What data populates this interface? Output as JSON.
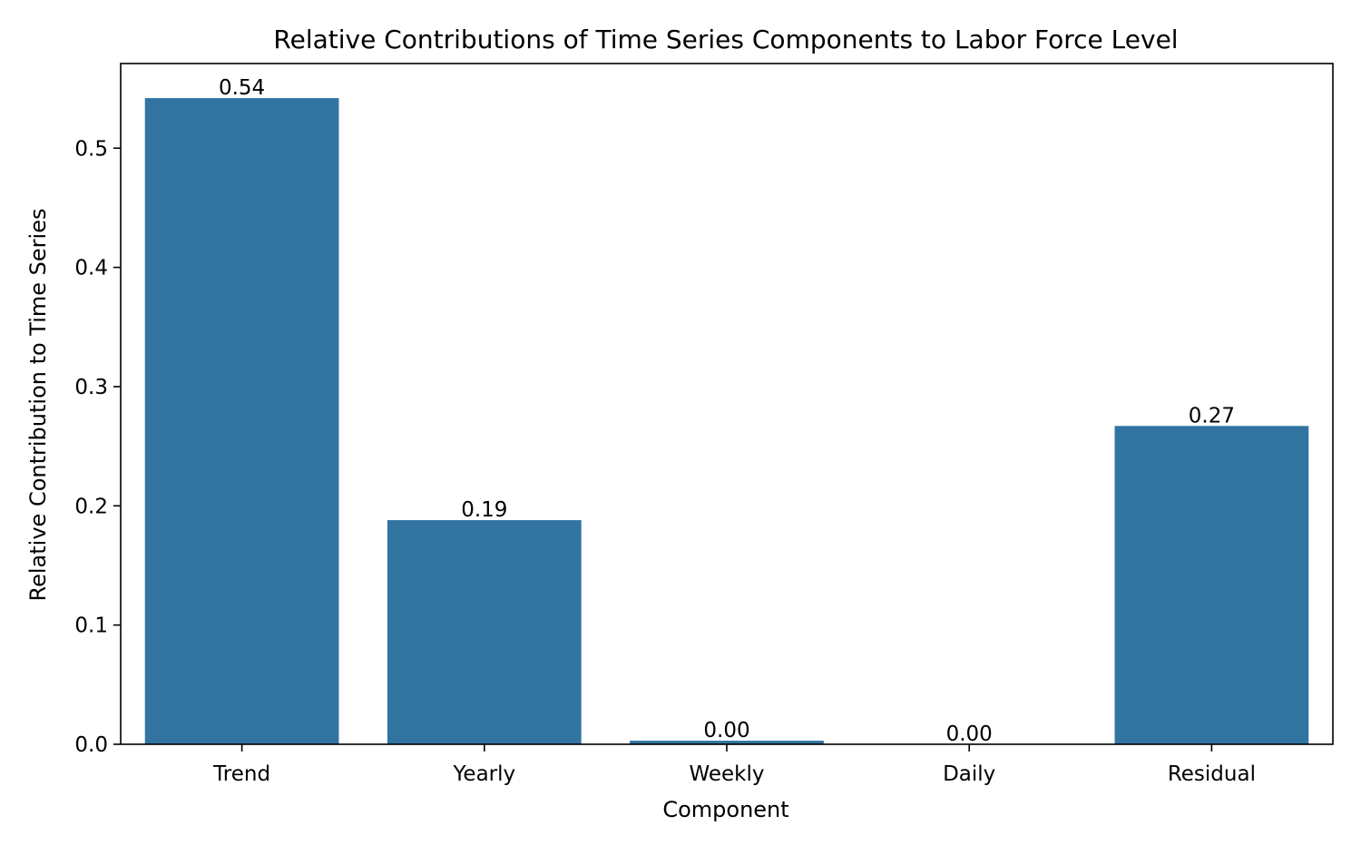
{
  "chart_data": {
    "type": "bar",
    "title": "Relative Contributions of Time Series Components to Labor Force Level",
    "xlabel": "Component",
    "ylabel": "Relative Contribution to Time Series",
    "categories": [
      "Trend",
      "Yearly",
      "Weekly",
      "Daily",
      "Residual"
    ],
    "values": [
      0.542,
      0.188,
      0.003,
      0.0,
      0.267
    ],
    "value_labels": [
      "0.54",
      "0.19",
      "0.00",
      "0.00",
      "0.27"
    ],
    "ylim": [
      0,
      0.571
    ],
    "yticks": [
      0.0,
      0.1,
      0.2,
      0.3,
      0.4,
      0.5
    ],
    "ytick_labels": [
      "0.0",
      "0.1",
      "0.2",
      "0.3",
      "0.4",
      "0.5"
    ],
    "grid": false,
    "legend": "none",
    "bar_color": "#3274a1"
  }
}
